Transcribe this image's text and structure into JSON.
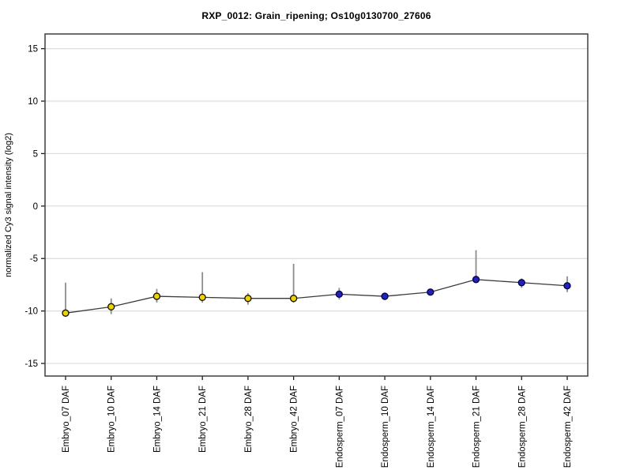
{
  "chart_data": {
    "type": "line",
    "title": "RXP_0012: Grain_ripening; Os10g0130700_27606",
    "xlabel": "",
    "ylabel": "normalized Cy3 signal intensity (log2)",
    "ylim": [
      -16.2,
      16.4
    ],
    "yticks": [
      15,
      10,
      5,
      0,
      -5,
      -10,
      -15
    ],
    "grid": true,
    "legend": "none",
    "categories": [
      "Embryo_07 DAF",
      "Embryo_10 DAF",
      "Embryo_14 DAF",
      "Embryo_21 DAF",
      "Embryo_28 DAF",
      "Embryo_42 DAF",
      "Endosperm_07 DAF",
      "Endosperm_10 DAF",
      "Endosperm_14 DAF",
      "Endosperm_21 DAF",
      "Endosperm_28 DAF",
      "Endosperm_42 DAF"
    ],
    "series": [
      {
        "name": "normalized Cy3 signal intensity (log2)",
        "values": [
          -10.2,
          -9.6,
          -8.6,
          -8.7,
          -8.8,
          -8.8,
          -8.4,
          -8.6,
          -8.2,
          -7.0,
          -7.3,
          -7.6
        ],
        "err_lo": [
          -10.3,
          -10.3,
          -9.2,
          -9.2,
          -9.4,
          -9.2,
          -8.9,
          -8.7,
          -8.5,
          -7.2,
          -7.8,
          -8.2
        ],
        "err_hi": [
          -7.3,
          -8.8,
          -7.9,
          -6.3,
          -8.3,
          -5.5,
          -7.8,
          -8.5,
          -8.0,
          -4.2,
          -6.9,
          -6.7
        ],
        "marker_groups": [
          "Embryo",
          "Embryo",
          "Embryo",
          "Embryo",
          "Embryo",
          "Embryo",
          "Endosperm",
          "Endosperm",
          "Endosperm",
          "Endosperm",
          "Endosperm",
          "Endosperm"
        ]
      }
    ],
    "groups": {
      "Embryo": {
        "fill": "#F0D203",
        "stroke": "#111100"
      },
      "Endosperm": {
        "fill": "#2222BB",
        "stroke": "#000045"
      }
    },
    "colors": {
      "line": "#3a3a3a",
      "error_bar": "#8c8c8c",
      "grid": "#dcdcdc",
      "frame": "#3f3f3f",
      "tick": "#1a1a1a",
      "text": "#000000"
    }
  }
}
